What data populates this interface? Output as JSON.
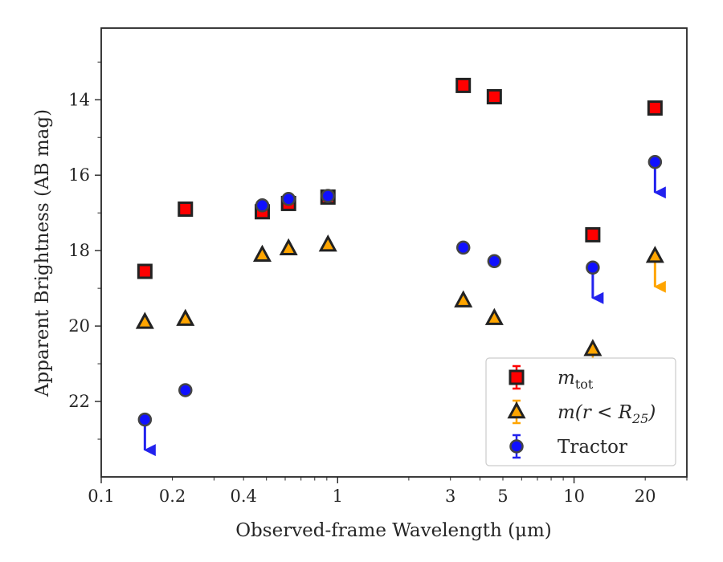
{
  "chart_data": {
    "type": "scatter",
    "xlabel": "Observed-frame Wavelength (μm)",
    "ylabel": "Apparent Brightness (AB mag)",
    "x_scale": "log",
    "xlim": [
      0.1,
      30
    ],
    "ylim": [
      24.0,
      12.1
    ],
    "y_inverted": true,
    "grid": false,
    "legend_position": "lower-right",
    "x_ticks": [
      {
        "value": 0.1,
        "label": "0.1"
      },
      {
        "value": 0.2,
        "label": "0.2"
      },
      {
        "value": 0.4,
        "label": "0.4"
      },
      {
        "value": 1,
        "label": "1"
      },
      {
        "value": 3,
        "label": "3"
      },
      {
        "value": 5,
        "label": "5"
      },
      {
        "value": 10,
        "label": "10"
      },
      {
        "value": 20,
        "label": "20"
      }
    ],
    "y_ticks": [
      {
        "value": 14,
        "label": "14"
      },
      {
        "value": 16,
        "label": "16"
      },
      {
        "value": 18,
        "label": "18"
      },
      {
        "value": 20,
        "label": "20"
      },
      {
        "value": 22,
        "label": "22"
      }
    ],
    "series": [
      {
        "name": "m_tot",
        "label_main": "m",
        "label_sub": "tot",
        "marker": "square",
        "color": "#ff0000",
        "edge_color": "#222222",
        "points": [
          {
            "x": 0.153,
            "y": 18.55
          },
          {
            "x": 0.227,
            "y": 16.9
          },
          {
            "x": 0.48,
            "y": 16.97
          },
          {
            "x": 0.62,
            "y": 16.75
          },
          {
            "x": 0.91,
            "y": 16.58
          },
          {
            "x": 3.4,
            "y": 13.62
          },
          {
            "x": 4.6,
            "y": 13.92
          },
          {
            "x": 12.0,
            "y": 17.58
          },
          {
            "x": 22.0,
            "y": 14.22
          }
        ]
      },
      {
        "name": "m(r<R_25)",
        "label_main": "m(r < R",
        "label_sub": "25",
        "label_end": ")",
        "marker": "triangle",
        "color": "#ffa500",
        "edge_color": "#222222",
        "points": [
          {
            "x": 0.153,
            "y": 19.9
          },
          {
            "x": 0.227,
            "y": 19.82
          },
          {
            "x": 0.48,
            "y": 18.12
          },
          {
            "x": 0.62,
            "y": 17.95
          },
          {
            "x": 0.91,
            "y": 17.85
          },
          {
            "x": 3.4,
            "y": 19.33
          },
          {
            "x": 4.6,
            "y": 19.8
          },
          {
            "x": 12.0,
            "y": 20.62,
            "err_low": 2.1
          },
          {
            "x": 22.0,
            "y": 18.15,
            "upper_limit": true
          }
        ]
      },
      {
        "name": "Tractor",
        "label_main": "Tractor",
        "marker": "circle",
        "color": "#1010ff",
        "edge_color": "#444444",
        "points": [
          {
            "x": 0.153,
            "y": 22.48,
            "upper_limit": true
          },
          {
            "x": 0.227,
            "y": 21.7
          },
          {
            "x": 0.48,
            "y": 16.8
          },
          {
            "x": 0.62,
            "y": 16.63
          },
          {
            "x": 0.91,
            "y": 16.55
          },
          {
            "x": 3.4,
            "y": 17.92
          },
          {
            "x": 4.6,
            "y": 18.28
          },
          {
            "x": 12.0,
            "y": 18.45,
            "upper_limit": true
          },
          {
            "x": 22.0,
            "y": 15.65,
            "upper_limit": true
          }
        ]
      }
    ]
  }
}
